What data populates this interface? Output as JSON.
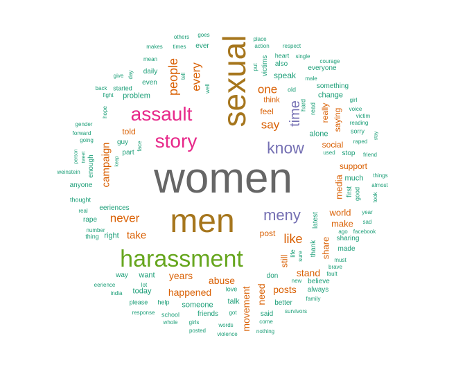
{
  "palette": {
    "green": "#1b9e77",
    "orange": "#d95f02",
    "purple": "#7570b3",
    "pink": "#e7298a",
    "lime": "#66a61e",
    "gold": "#a6761d",
    "gray": "#666666"
  },
  "words": [
    {
      "text": "women",
      "c": "gray"
    },
    {
      "text": "men",
      "c": "gold"
    },
    {
      "text": "sexual",
      "c": "gold"
    },
    {
      "text": "harassment",
      "c": "lime"
    },
    {
      "text": "assault",
      "c": "pink"
    },
    {
      "text": "story",
      "c": "pink"
    },
    {
      "text": "know",
      "c": "purple"
    },
    {
      "text": "meny",
      "c": "purple"
    },
    {
      "text": "time",
      "c": "purple"
    },
    {
      "text": "people",
      "c": "orange"
    },
    {
      "text": "every",
      "c": "orange"
    },
    {
      "text": "one",
      "c": "orange"
    },
    {
      "text": "say",
      "c": "orange"
    },
    {
      "text": "never",
      "c": "orange"
    },
    {
      "text": "take",
      "c": "orange"
    },
    {
      "text": "like",
      "c": "orange"
    },
    {
      "text": "campaign",
      "c": "orange"
    },
    {
      "text": "years",
      "c": "orange"
    },
    {
      "text": "abuse",
      "c": "orange"
    },
    {
      "text": "happened",
      "c": "orange"
    },
    {
      "text": "movement",
      "c": "orange"
    },
    {
      "text": "need",
      "c": "orange"
    },
    {
      "text": "posts",
      "c": "orange"
    },
    {
      "text": "stand",
      "c": "orange"
    },
    {
      "text": "share",
      "c": "orange"
    },
    {
      "text": "still",
      "c": "orange"
    },
    {
      "text": "post",
      "c": "orange"
    },
    {
      "text": "world",
      "c": "orange"
    },
    {
      "text": "make",
      "c": "orange"
    },
    {
      "text": "media",
      "c": "orange"
    },
    {
      "text": "support",
      "c": "orange"
    },
    {
      "text": "social",
      "c": "orange"
    },
    {
      "text": "really",
      "c": "orange"
    },
    {
      "text": "saying",
      "c": "orange"
    },
    {
      "text": "feel",
      "c": "orange"
    },
    {
      "text": "think",
      "c": "orange"
    },
    {
      "text": "told",
      "c": "orange"
    },
    {
      "text": "speak",
      "c": "green"
    },
    {
      "text": "victims",
      "c": "green"
    },
    {
      "text": "also",
      "c": "green"
    },
    {
      "text": "heart",
      "c": "green"
    },
    {
      "text": "put",
      "c": "green"
    },
    {
      "text": "place",
      "c": "green"
    },
    {
      "text": "action",
      "c": "green"
    },
    {
      "text": "respect",
      "c": "green"
    },
    {
      "text": "single",
      "c": "green"
    },
    {
      "text": "courage",
      "c": "green"
    },
    {
      "text": "everyone",
      "c": "green"
    },
    {
      "text": "male",
      "c": "green"
    },
    {
      "text": "old",
      "c": "green"
    },
    {
      "text": "something",
      "c": "green"
    },
    {
      "text": "change",
      "c": "green"
    },
    {
      "text": "hard",
      "c": "green"
    },
    {
      "text": "read",
      "c": "green"
    },
    {
      "text": "girl",
      "c": "green"
    },
    {
      "text": "voice",
      "c": "green"
    },
    {
      "text": "victim",
      "c": "green"
    },
    {
      "text": "reading",
      "c": "green"
    },
    {
      "text": "sorry",
      "c": "green"
    },
    {
      "text": "stay",
      "c": "green"
    },
    {
      "text": "alone",
      "c": "green"
    },
    {
      "text": "raped",
      "c": "green"
    },
    {
      "text": "used",
      "c": "green"
    },
    {
      "text": "stop",
      "c": "green"
    },
    {
      "text": "friend",
      "c": "green"
    },
    {
      "text": "things",
      "c": "green"
    },
    {
      "text": "almost",
      "c": "green"
    },
    {
      "text": "much",
      "c": "green"
    },
    {
      "text": "first",
      "c": "green"
    },
    {
      "text": "good",
      "c": "green"
    },
    {
      "text": "took",
      "c": "green"
    },
    {
      "text": "year",
      "c": "green"
    },
    {
      "text": "sad",
      "c": "green"
    },
    {
      "text": "facebook",
      "c": "green"
    },
    {
      "text": "ago",
      "c": "green"
    },
    {
      "text": "sharing",
      "c": "green"
    },
    {
      "text": "made",
      "c": "green"
    },
    {
      "text": "latest",
      "c": "green"
    },
    {
      "text": "thank",
      "c": "green"
    },
    {
      "text": "sure",
      "c": "green"
    },
    {
      "text": "life",
      "c": "green"
    },
    {
      "text": "must",
      "c": "green"
    },
    {
      "text": "brave",
      "c": "green"
    },
    {
      "text": "fault",
      "c": "green"
    },
    {
      "text": "believe",
      "c": "green"
    },
    {
      "text": "new",
      "c": "green"
    },
    {
      "text": "always",
      "c": "green"
    },
    {
      "text": "family",
      "c": "green"
    },
    {
      "text": "don",
      "c": "green"
    },
    {
      "text": "better",
      "c": "green"
    },
    {
      "text": "said",
      "c": "green"
    },
    {
      "text": "survivors",
      "c": "green"
    },
    {
      "text": "come",
      "c": "green"
    },
    {
      "text": "nothing",
      "c": "green"
    },
    {
      "text": "talk",
      "c": "green"
    },
    {
      "text": "love",
      "c": "green"
    },
    {
      "text": "got",
      "c": "green"
    },
    {
      "text": "words",
      "c": "green"
    },
    {
      "text": "violence",
      "c": "green"
    },
    {
      "text": "someone",
      "c": "green"
    },
    {
      "text": "friends",
      "c": "green"
    },
    {
      "text": "girls",
      "c": "green"
    },
    {
      "text": "posted",
      "c": "green"
    },
    {
      "text": "school",
      "c": "green"
    },
    {
      "text": "whole",
      "c": "green"
    },
    {
      "text": "help",
      "c": "green"
    },
    {
      "text": "response",
      "c": "green"
    },
    {
      "text": "please",
      "c": "green"
    },
    {
      "text": "today",
      "c": "green"
    },
    {
      "text": "want",
      "c": "green"
    },
    {
      "text": "lot",
      "c": "green"
    },
    {
      "text": "way",
      "c": "green"
    },
    {
      "text": "eerience",
      "c": "green"
    },
    {
      "text": "india",
      "c": "green"
    },
    {
      "text": "right",
      "c": "green"
    },
    {
      "text": "number",
      "c": "green"
    },
    {
      "text": "thing",
      "c": "green"
    },
    {
      "text": "rape",
      "c": "green"
    },
    {
      "text": "eeriences",
      "c": "green"
    },
    {
      "text": "real",
      "c": "green"
    },
    {
      "text": "thought",
      "c": "green"
    },
    {
      "text": "anyone",
      "c": "green"
    },
    {
      "text": "weinstein",
      "c": "green"
    },
    {
      "text": "person",
      "c": "green"
    },
    {
      "text": "tweet",
      "c": "green"
    },
    {
      "text": "enough",
      "c": "green"
    },
    {
      "text": "keep",
      "c": "green"
    },
    {
      "text": "guy",
      "c": "green"
    },
    {
      "text": "part",
      "c": "green"
    },
    {
      "text": "face",
      "c": "green"
    },
    {
      "text": "gender",
      "c": "green"
    },
    {
      "text": "forward",
      "c": "green"
    },
    {
      "text": "going",
      "c": "green"
    },
    {
      "text": "hope",
      "c": "green"
    },
    {
      "text": "back",
      "c": "green"
    },
    {
      "text": "fight",
      "c": "green"
    },
    {
      "text": "give",
      "c": "green"
    },
    {
      "text": "started",
      "c": "green"
    },
    {
      "text": "problem",
      "c": "green"
    },
    {
      "text": "mean",
      "c": "green"
    },
    {
      "text": "day",
      "c": "green"
    },
    {
      "text": "daily",
      "c": "green"
    },
    {
      "text": "even",
      "c": "green"
    },
    {
      "text": "tell",
      "c": "green"
    },
    {
      "text": "well",
      "c": "green"
    },
    {
      "text": "makes",
      "c": "green"
    },
    {
      "text": "times",
      "c": "green"
    },
    {
      "text": "others",
      "c": "green"
    },
    {
      "text": "goes",
      "c": "green"
    },
    {
      "text": "ever",
      "c": "green"
    }
  ]
}
